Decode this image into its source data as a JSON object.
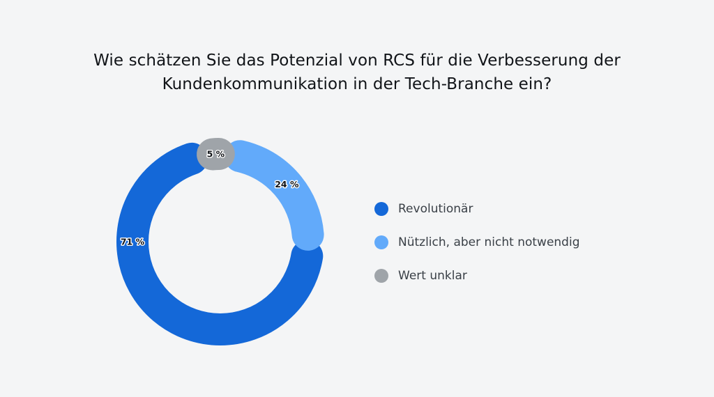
{
  "title_lines": [
    "Wie schätzen Sie das Potenzial von RCS für die Verbesserung der",
    "Kundenkommunikation in der Tech-Branche ein?"
  ],
  "chart_data": {
    "type": "pie",
    "title": "Wie schätzen Sie das Potenzial von RCS für die Verbesserung der Kundenkommunikation in der Tech-Branche ein?",
    "style": "donut",
    "legend_position": "right",
    "series": [
      {
        "name": "Revolutionär",
        "value": 71,
        "label": "71 %",
        "color": "#1468d8"
      },
      {
        "name": "Nützlich, aber nicht notwendig",
        "value": 24,
        "label": "24 %",
        "color": "#62aafa"
      },
      {
        "name": "Wert unklar",
        "value": 5,
        "label": "5 %",
        "color": "#9fa4a9"
      }
    ]
  }
}
